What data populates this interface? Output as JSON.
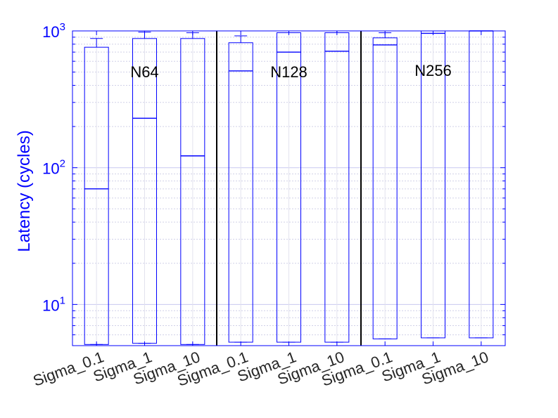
{
  "chart_data": {
    "type": "box",
    "ylabel": "Latency (cycles)",
    "yscale": "log",
    "ylim": [
      5,
      1000
    ],
    "yticks": [
      {
        "value": 10,
        "base": "10",
        "exp": "1"
      },
      {
        "value": 100,
        "base": "10",
        "exp": "2"
      },
      {
        "value": 1000,
        "base": "10",
        "exp": "3"
      }
    ],
    "grid": true,
    "categories": [
      "Sigma_0.1",
      "Sigma_1",
      "Sigma_10",
      "Sigma_0.1",
      "Sigma_1",
      "Sigma_10",
      "Sigma_0.1",
      "Sigma_1",
      "Sigma_10"
    ],
    "groups": [
      {
        "label": "N64",
        "members": [
          0,
          1,
          2
        ]
      },
      {
        "label": "N128",
        "members": [
          3,
          4,
          5
        ]
      },
      {
        "label": "N256",
        "members": [
          6,
          7,
          8
        ]
      }
    ],
    "boxes": [
      {
        "q1": 5.1,
        "median": 70,
        "q3": 760,
        "whisker_low": 5.1,
        "whisker_high": 880
      },
      {
        "q1": 5.2,
        "median": 230,
        "q3": 880,
        "whisker_low": 5.2,
        "whisker_high": 980
      },
      {
        "q1": 5.1,
        "median": 122,
        "q3": 880,
        "whisker_low": 5.1,
        "whisker_high": 970
      },
      {
        "q1": 5.3,
        "median": 510,
        "q3": 820,
        "whisker_low": 5.3,
        "whisker_high": 920
      },
      {
        "q1": 5.3,
        "median": 700,
        "q3": 970,
        "whisker_low": 5.3,
        "whisker_high": 1000
      },
      {
        "q1": 5.3,
        "median": 710,
        "q3": 970,
        "whisker_low": 5.3,
        "whisker_high": 1000
      },
      {
        "q1": 5.6,
        "median": 790,
        "q3": 890,
        "whisker_low": 5.6,
        "whisker_high": 970
      },
      {
        "q1": 5.7,
        "median": 960,
        "q3": 1000,
        "whisker_low": 5.7,
        "whisker_high": 1000
      },
      {
        "q1": 5.7,
        "median": 1000,
        "q3": 1000,
        "whisker_low": 5.7,
        "whisker_high": 1000
      }
    ],
    "colors": {
      "box": "#0000ff",
      "axis": "#0000ff",
      "separator": "#000000",
      "grid": "#d0d0e8"
    }
  }
}
